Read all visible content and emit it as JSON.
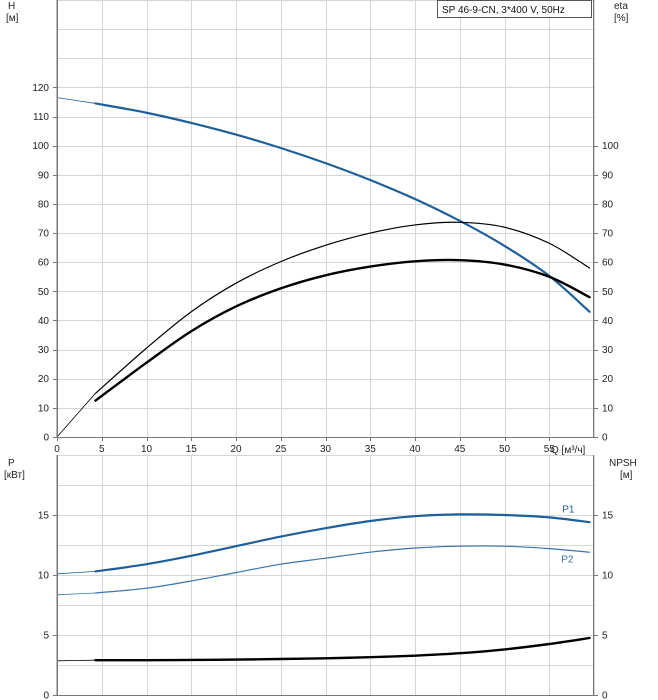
{
  "legend": "SP 46-9-CN, 3*400 V, 50Hz",
  "colors": {
    "blue": "#1f5f99",
    "blue_light": "#3a73ad",
    "black": "#000000",
    "grid": "#d6d6d6"
  },
  "chart_data": [
    {
      "type": "line",
      "name": "head-efficiency",
      "x_label": "Q [м³/ч]",
      "x_ticks": [
        0,
        5,
        10,
        15,
        20,
        25,
        30,
        35,
        40,
        45,
        50,
        55
      ],
      "xlim": [
        0,
        60
      ],
      "y_left_label": [
        "H",
        "[м]"
      ],
      "y_left_ticks": [
        0,
        10,
        20,
        30,
        40,
        50,
        60,
        70,
        80,
        90,
        100,
        110,
        120
      ],
      "ylim": [
        0,
        150
      ],
      "y_right_label": [
        "eta",
        "[%]"
      ],
      "y_right_ticks": [
        0,
        10,
        20,
        30,
        40,
        50,
        60,
        70,
        80,
        90,
        100
      ],
      "grid": true,
      "legend_position": "top-right",
      "series": [
        {
          "id": "head",
          "axis": "H",
          "color": "#1f5f99",
          "width": 2.2,
          "x": [
            4.3,
            10,
            15,
            20,
            25,
            30,
            35,
            40,
            45,
            50,
            55,
            59.5
          ],
          "y": [
            114.5,
            111.3,
            107.8,
            103.8,
            99.2,
            94.0,
            88.2,
            81.7,
            74.2,
            65.6,
            55.3,
            43.0
          ],
          "ext_x": [
            0,
            4.3
          ],
          "ext_y": [
            116.5,
            114.5
          ]
        },
        {
          "id": "eta-pump",
          "axis": "eta",
          "color": "#000000",
          "width": 1.2,
          "x": [
            4.3,
            10,
            15,
            20,
            25,
            30,
            35,
            40,
            45,
            50,
            55,
            59.5
          ],
          "y": [
            15.0,
            30.5,
            43.0,
            52.8,
            60.2,
            65.8,
            70.0,
            72.8,
            73.7,
            72.0,
            66.5,
            58.0
          ],
          "ext_x": [
            0,
            4.3
          ],
          "ext_y": [
            0,
            15.0
          ]
        },
        {
          "id": "eta-total",
          "axis": "eta",
          "color": "#000000",
          "width": 2.4,
          "x": [
            4.3,
            10,
            15,
            20,
            25,
            30,
            35,
            40,
            45,
            50,
            55,
            59.5
          ],
          "y": [
            12.5,
            25.5,
            36.3,
            44.8,
            51.0,
            55.5,
            58.5,
            60.3,
            60.7,
            59.2,
            55.0,
            48.0
          ]
        }
      ]
    },
    {
      "type": "line",
      "name": "power-npsh",
      "xlim": [
        0,
        60
      ],
      "y_left_label": [
        "P",
        "[кВт]"
      ],
      "y_left_ticks": [
        0,
        5,
        10,
        15
      ],
      "ylim": [
        0,
        20
      ],
      "y_right_label": [
        "NPSH",
        "[м]"
      ],
      "y_right_ticks": [
        0,
        5,
        10,
        15
      ],
      "grid": true,
      "series": [
        {
          "id": "P1",
          "label": "P1",
          "color": "#1f5f99",
          "width": 2.2,
          "x": [
            4.3,
            10,
            15,
            20,
            25,
            30,
            35,
            40,
            45,
            50,
            55,
            59.5
          ],
          "y": [
            10.3,
            10.9,
            11.6,
            12.4,
            13.2,
            13.9,
            14.5,
            14.9,
            15.05,
            15.0,
            14.8,
            14.4
          ],
          "ext_x": [
            0,
            4.3
          ],
          "ext_y": [
            10.1,
            10.3
          ]
        },
        {
          "id": "P2",
          "label": "P2",
          "color": "#3a73ad",
          "width": 1.2,
          "x": [
            4.3,
            10,
            15,
            20,
            25,
            30,
            35,
            40,
            45,
            50,
            55,
            59.5
          ],
          "y": [
            8.5,
            8.9,
            9.5,
            10.2,
            10.9,
            11.4,
            11.9,
            12.25,
            12.4,
            12.4,
            12.2,
            11.9
          ],
          "ext_x": [
            0,
            4.3
          ],
          "ext_y": [
            8.35,
            8.5
          ]
        },
        {
          "id": "NPSH",
          "color": "#000000",
          "width": 2.4,
          "x": [
            4.3,
            10,
            15,
            20,
            25,
            30,
            35,
            40,
            45,
            50,
            55,
            59.5
          ],
          "y": [
            2.9,
            2.9,
            2.92,
            2.95,
            3.0,
            3.06,
            3.15,
            3.28,
            3.48,
            3.8,
            4.25,
            4.75
          ],
          "ext_x": [
            0,
            4.3
          ],
          "ext_y": [
            2.85,
            2.9
          ]
        }
      ]
    }
  ]
}
